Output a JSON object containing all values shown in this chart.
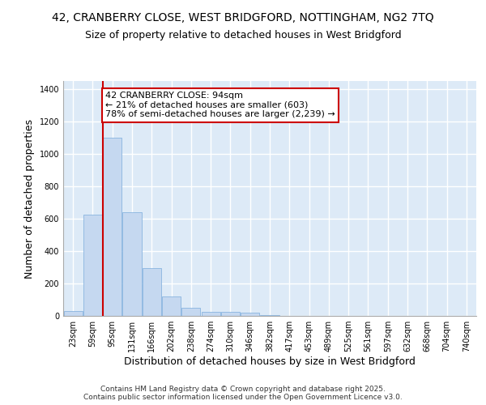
{
  "title_line1": "42, CRANBERRY CLOSE, WEST BRIDGFORD, NOTTINGHAM, NG2 7TQ",
  "title_line2": "Size of property relative to detached houses in West Bridgford",
  "xlabel": "Distribution of detached houses by size in West Bridgford",
  "ylabel": "Number of detached properties",
  "categories": [
    "23sqm",
    "59sqm",
    "95sqm",
    "131sqm",
    "166sqm",
    "202sqm",
    "238sqm",
    "274sqm",
    "310sqm",
    "346sqm",
    "382sqm",
    "417sqm",
    "453sqm",
    "489sqm",
    "525sqm",
    "561sqm",
    "597sqm",
    "632sqm",
    "668sqm",
    "704sqm",
    "740sqm"
  ],
  "values": [
    30,
    625,
    1100,
    640,
    295,
    120,
    52,
    25,
    25,
    20,
    5,
    0,
    0,
    0,
    0,
    0,
    0,
    0,
    0,
    0,
    0
  ],
  "bar_color": "#c5d8f0",
  "bar_edge_color": "#7aabdb",
  "plot_bg_color": "#ddeaf7",
  "grid_color": "#ffffff",
  "fig_bg_color": "#ffffff",
  "property_line_color": "#cc0000",
  "property_line_index": 2,
  "annotation_text": "42 CRANBERRY CLOSE: 94sqm\n← 21% of detached houses are smaller (603)\n78% of semi-detached houses are larger (2,239) →",
  "annotation_box_edgecolor": "#cc0000",
  "ylim": [
    0,
    1450
  ],
  "yticks": [
    0,
    200,
    400,
    600,
    800,
    1000,
    1200,
    1400
  ],
  "footer_text": "Contains HM Land Registry data © Crown copyright and database right 2025.\nContains public sector information licensed under the Open Government Licence v3.0.",
  "title_fontsize": 10,
  "subtitle_fontsize": 9,
  "axis_label_fontsize": 9,
  "tick_fontsize": 7,
  "footer_fontsize": 6.5,
  "annotation_fontsize": 8
}
